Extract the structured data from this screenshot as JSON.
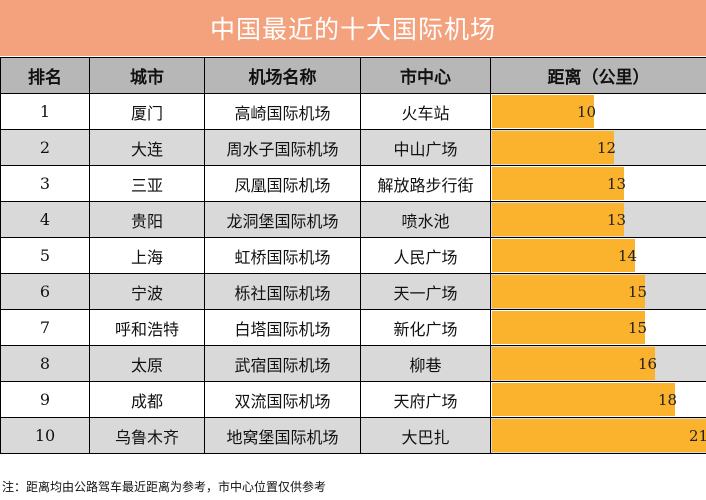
{
  "title": "中国最近的十大国际机场",
  "headers": {
    "rank": "排名",
    "city": "城市",
    "airport": "机场名称",
    "center": "市中心",
    "distance": "距离（公里）"
  },
  "note": "注：距离均由公路驾车最近距离为参考，市中心位置仅供参考",
  "colors": {
    "title_bg": "#f4a27e",
    "header_bg": "#b7b7b7",
    "row_alt_bg": "#d9d9d9",
    "bar": "#fbb22c"
  },
  "chart_data": {
    "type": "table",
    "columns": [
      "排名",
      "城市",
      "机场名称",
      "市中心",
      "距离（公里）"
    ],
    "rows": [
      {
        "rank": "1",
        "city": "厦门",
        "airport": "高崎国际机场",
        "center": "火车站",
        "distance": 10
      },
      {
        "rank": "2",
        "city": "大连",
        "airport": "周水子国际机场",
        "center": "中山广场",
        "distance": 12
      },
      {
        "rank": "3",
        "city": "三亚",
        "airport": "凤凰国际机场",
        "center": "解放路步行街",
        "distance": 13
      },
      {
        "rank": "4",
        "city": "贵阳",
        "airport": "龙洞堡国际机场",
        "center": "喷水池",
        "distance": 13
      },
      {
        "rank": "5",
        "city": "上海",
        "airport": "虹桥国际机场",
        "center": "人民广场",
        "distance": 14
      },
      {
        "rank": "6",
        "city": "宁波",
        "airport": "栎社国际机场",
        "center": "天一广场",
        "distance": 15
      },
      {
        "rank": "7",
        "city": "呼和浩特",
        "airport": "白塔国际机场",
        "center": "新化广场",
        "distance": 15
      },
      {
        "rank": "8",
        "city": "太原",
        "airport": "武宿国际机场",
        "center": "柳巷",
        "distance": 16
      },
      {
        "rank": "9",
        "city": "成都",
        "airport": "双流国际机场",
        "center": "天府广场",
        "distance": 18
      },
      {
        "rank": "10",
        "city": "乌鲁木齐",
        "airport": "地窝堡国际机场",
        "center": "大巴扎",
        "distance": 21
      }
    ],
    "bar_max": 21
  }
}
